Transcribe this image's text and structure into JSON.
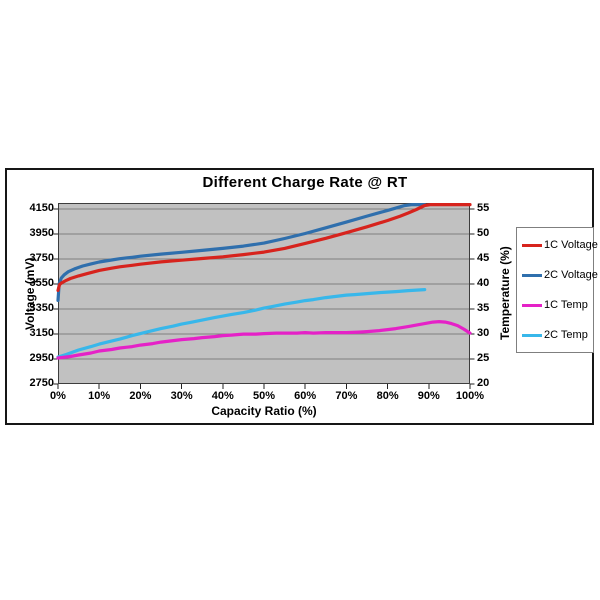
{
  "chart_data": {
    "type": "line",
    "title": "Different Charge Rate @ RT",
    "xlabel": "Capacity Ratio (%)",
    "ylabel_left": "Voltage (mV)",
    "ylabel_right": "Temperature (%)",
    "x_ticks": [
      "0%",
      "10%",
      "20%",
      "30%",
      "40%",
      "50%",
      "60%",
      "70%",
      "80%",
      "90%",
      "100%"
    ],
    "y_left_ticks": [
      2750,
      2950,
      3150,
      3350,
      3550,
      3750,
      3950,
      4150
    ],
    "y_right_ticks": [
      20,
      25,
      30,
      35,
      40,
      45,
      50,
      55
    ],
    "x_range": [
      0,
      100
    ],
    "y_left_range": [
      2750,
      4200
    ],
    "y_right_range": [
      20,
      56.25
    ],
    "grid": "horizontal",
    "plot_bg_color": "#c1c1c1",
    "gridline_color": "#7f7f7f",
    "plot_border_color": "#3d3d3d",
    "legend_position": "right",
    "series": [
      {
        "name": "1C Voltage",
        "color": "#d7231d",
        "axis": "left",
        "points": [
          [
            0,
            3500
          ],
          [
            0.4,
            3548
          ],
          [
            1,
            3562
          ],
          [
            2,
            3580
          ],
          [
            3,
            3595
          ],
          [
            5,
            3616
          ],
          [
            7,
            3634
          ],
          [
            10,
            3660
          ],
          [
            13,
            3678
          ],
          [
            15,
            3689
          ],
          [
            18,
            3701
          ],
          [
            20,
            3710
          ],
          [
            25,
            3728
          ],
          [
            30,
            3742
          ],
          [
            35,
            3755
          ],
          [
            40,
            3769
          ],
          [
            45,
            3787
          ],
          [
            50,
            3807
          ],
          [
            55,
            3836
          ],
          [
            60,
            3876
          ],
          [
            65,
            3917
          ],
          [
            70,
            3962
          ],
          [
            75,
            4009
          ],
          [
            80,
            4060
          ],
          [
            83,
            4094
          ],
          [
            85,
            4120
          ],
          [
            87,
            4148
          ],
          [
            89,
            4180
          ],
          [
            90.5,
            4199
          ],
          [
            92,
            4200
          ],
          [
            100,
            4200
          ]
        ]
      },
      {
        "name": "2C Voltage",
        "color": "#2f6fad",
        "axis": "left",
        "points": [
          [
            0,
            3420
          ],
          [
            0.3,
            3555
          ],
          [
            0.8,
            3598
          ],
          [
            1.5,
            3625
          ],
          [
            2.5,
            3650
          ],
          [
            4,
            3672
          ],
          [
            6,
            3695
          ],
          [
            8,
            3712
          ],
          [
            10,
            3727
          ],
          [
            13,
            3743
          ],
          [
            15,
            3754
          ],
          [
            18,
            3765
          ],
          [
            20,
            3774
          ],
          [
            25,
            3791
          ],
          [
            30,
            3805
          ],
          [
            35,
            3820
          ],
          [
            40,
            3836
          ],
          [
            45,
            3855
          ],
          [
            50,
            3879
          ],
          [
            55,
            3916
          ],
          [
            60,
            3956
          ],
          [
            65,
            4001
          ],
          [
            70,
            4047
          ],
          [
            75,
            4095
          ],
          [
            80,
            4141
          ],
          [
            84,
            4178
          ],
          [
            86,
            4192
          ],
          [
            88,
            4199
          ],
          [
            89,
            4200
          ]
        ]
      },
      {
        "name": "1C Temp",
        "color": "#e521c7",
        "axis": "right",
        "points": [
          [
            0,
            25.2
          ],
          [
            3,
            25.5
          ],
          [
            5,
            25.8
          ],
          [
            8,
            26.2
          ],
          [
            10,
            26.6
          ],
          [
            13,
            26.9
          ],
          [
            15,
            27.2
          ],
          [
            18,
            27.5
          ],
          [
            20,
            27.8
          ],
          [
            23,
            28.1
          ],
          [
            25,
            28.4
          ],
          [
            28,
            28.7
          ],
          [
            30,
            28.9
          ],
          [
            33,
            29.1
          ],
          [
            35,
            29.3
          ],
          [
            38,
            29.5
          ],
          [
            40,
            29.7
          ],
          [
            42,
            29.8
          ],
          [
            45,
            30.0
          ],
          [
            48,
            30.0
          ],
          [
            50,
            30.1
          ],
          [
            53,
            30.2
          ],
          [
            55,
            30.2
          ],
          [
            58,
            30.2
          ],
          [
            60,
            30.3
          ],
          [
            62,
            30.2
          ],
          [
            65,
            30.3
          ],
          [
            68,
            30.3
          ],
          [
            70,
            30.3
          ],
          [
            73,
            30.4
          ],
          [
            75,
            30.5
          ],
          [
            78,
            30.7
          ],
          [
            80,
            30.9
          ],
          [
            82,
            31.1
          ],
          [
            85,
            31.5
          ],
          [
            87,
            31.8
          ],
          [
            89,
            32.1
          ],
          [
            91,
            32.4
          ],
          [
            92.5,
            32.5
          ],
          [
            94,
            32.4
          ],
          [
            95.5,
            32.1
          ],
          [
            97,
            31.7
          ],
          [
            98.5,
            31.0
          ],
          [
            100,
            30.2
          ]
        ]
      },
      {
        "name": "2C Temp",
        "color": "#38b7ea",
        "axis": "right",
        "points": [
          [
            0,
            25.4
          ],
          [
            2,
            25.9
          ],
          [
            5,
            26.8
          ],
          [
            8,
            27.5
          ],
          [
            10,
            28.0
          ],
          [
            12,
            28.4
          ],
          [
            15,
            29.0
          ],
          [
            18,
            29.7
          ],
          [
            20,
            30.1
          ],
          [
            22,
            30.5
          ],
          [
            25,
            31.1
          ],
          [
            28,
            31.6
          ],
          [
            30,
            32.0
          ],
          [
            32,
            32.3
          ],
          [
            35,
            32.8
          ],
          [
            38,
            33.3
          ],
          [
            40,
            33.6
          ],
          [
            42,
            33.9
          ],
          [
            45,
            34.3
          ],
          [
            48,
            34.8
          ],
          [
            50,
            35.2
          ],
          [
            52,
            35.5
          ],
          [
            55,
            36.0
          ],
          [
            58,
            36.4
          ],
          [
            60,
            36.7
          ],
          [
            62,
            36.9
          ],
          [
            65,
            37.3
          ],
          [
            68,
            37.6
          ],
          [
            70,
            37.8
          ],
          [
            72,
            37.9
          ],
          [
            75,
            38.1
          ],
          [
            78,
            38.3
          ],
          [
            80,
            38.4
          ],
          [
            82,
            38.5
          ],
          [
            85,
            38.7
          ],
          [
            87,
            38.8
          ],
          [
            89,
            38.9
          ]
        ]
      }
    ]
  }
}
